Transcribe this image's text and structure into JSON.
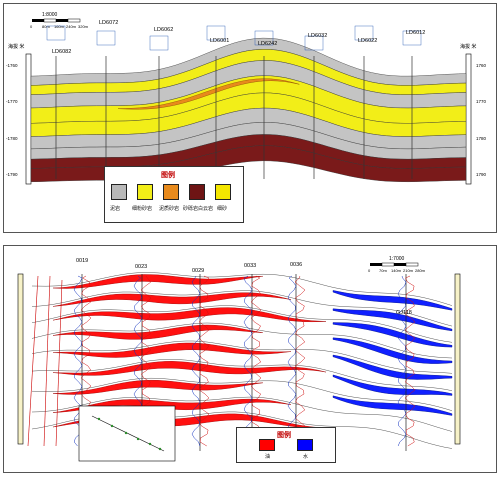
{
  "top": {
    "scale_label": "1:8000",
    "scale_ticks": [
      "0",
      "80m",
      "160m",
      "240m",
      "320m"
    ],
    "axis_title_left": "海拔 米",
    "axis_title_right": "海拔 米",
    "left_ticks": [
      "-1760",
      "-1770",
      "-1780",
      "-1790"
    ],
    "right_ticks": [
      "1760",
      "1770",
      "1780",
      "1790"
    ],
    "wells": [
      "LD6082",
      "LD6072",
      "LD6062",
      "LD6001",
      "LD6242",
      "LD6032",
      "LD6022",
      "LD6012"
    ],
    "legend": {
      "title": "图例",
      "items": [
        {
          "label": "泥岩",
          "color": "#b9b9b9"
        },
        {
          "label": "细粉砂岩",
          "color": "#f2ee18"
        },
        {
          "label": "泥质砂岩",
          "color": "#e88a1c"
        },
        {
          "label": "砂砾岩白云岩",
          "color": "#6e1414"
        },
        {
          "label": "细砂",
          "color": "#f4e600"
        }
      ]
    }
  },
  "bottom": {
    "scale_label": "1:7000",
    "scale_ticks": [
      "0",
      "70m",
      "140m",
      "210m",
      "280m"
    ],
    "wells": [
      "0019",
      "0023",
      "0029",
      "0033",
      "0036",
      "GJ118"
    ],
    "legend": {
      "title": "图例",
      "items": [
        {
          "label": "油",
          "color": "#ff0000"
        },
        {
          "label": "水",
          "color": "#0000ff"
        }
      ]
    }
  }
}
